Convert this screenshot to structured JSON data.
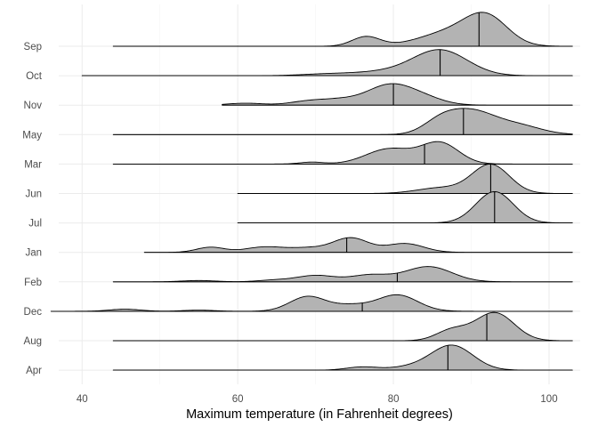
{
  "chart_data": {
    "type": "ridgeline",
    "title": "",
    "xlabel": "Maximum temperature (in Fahrenheit degrees)",
    "ylabel": "",
    "xlim": [
      37,
      104
    ],
    "x_ticks": [
      40,
      60,
      80,
      100
    ],
    "x_tick_labels": [
      "40",
      "60",
      "80",
      "100"
    ],
    "grid": true,
    "legend": "none",
    "fill_color": "#b3b3b3",
    "line_color": "#000000",
    "scale": 36,
    "categories": [
      "Sep",
      "Oct",
      "Nov",
      "May",
      "Mar",
      "Jun",
      "Jul",
      "Jan",
      "Feb",
      "Dec",
      "Aug",
      "Apr"
    ],
    "series": [
      {
        "name": "Sep",
        "median": 91,
        "range": [
          44,
          103
        ],
        "components": [
          [
            76.5,
            1.8,
            0.6
          ],
          [
            87.5,
            4,
            0.9
          ],
          [
            92,
            2.7,
            1.6
          ]
        ]
      },
      {
        "name": "Oct",
        "median": 86,
        "range": [
          40,
          103
        ],
        "components": [
          [
            72,
            3.5,
            0.12
          ],
          [
            79,
            3.5,
            0.22
          ],
          [
            86,
            3.5,
            1.6
          ]
        ]
      },
      {
        "name": "Nov",
        "median": 80,
        "range": [
          58,
          103
        ],
        "components": [
          [
            61,
            2.3,
            0.12
          ],
          [
            69,
            2.3,
            0.24
          ],
          [
            73,
            2.3,
            0.28
          ],
          [
            79.5,
            3,
            1.25
          ],
          [
            84,
            2.6,
            0.35
          ]
        ]
      },
      {
        "name": "May",
        "median": 89,
        "range": [
          44,
          103
        ],
        "components": [
          [
            86,
            2.2,
            0.7
          ],
          [
            90,
            3,
            1.4
          ],
          [
            96,
            3,
            0.55
          ]
        ]
      },
      {
        "name": "Mar",
        "median": 84,
        "range": [
          44,
          103
        ],
        "components": [
          [
            69.5,
            1.5,
            0.12
          ],
          [
            79.5,
            3,
            0.95
          ],
          [
            86,
            2.4,
            1.3
          ]
        ]
      },
      {
        "name": "Jun",
        "median": 92.5,
        "range": [
          60,
          103
        ],
        "components": [
          [
            86,
            3,
            0.35
          ],
          [
            92.5,
            2.4,
            1.8
          ]
        ]
      },
      {
        "name": "Jul",
        "median": 93,
        "range": [
          60,
          103
        ],
        "components": [
          [
            93,
            2.4,
            1.95
          ]
        ]
      },
      {
        "name": "Jan",
        "median": 74,
        "range": [
          48,
          103
        ],
        "components": [
          [
            56.5,
            1.8,
            0.32
          ],
          [
            63.5,
            2.5,
            0.34
          ],
          [
            69,
            2.3,
            0.25
          ],
          [
            74.5,
            2.3,
            0.9
          ],
          [
            81.5,
            2.4,
            0.55
          ]
        ]
      },
      {
        "name": "Feb",
        "median": 80.5,
        "range": [
          44,
          103
        ],
        "components": [
          [
            55,
            2.2,
            0.08
          ],
          [
            64.5,
            2,
            0.1
          ],
          [
            70,
            2.5,
            0.4
          ],
          [
            77,
            2.5,
            0.42
          ],
          [
            84.5,
            3,
            0.95
          ]
        ]
      },
      {
        "name": "Dec",
        "median": 76,
        "range": [
          36,
          103
        ],
        "components": [
          [
            45.5,
            2,
            0.13
          ],
          [
            55,
            2,
            0.07
          ],
          [
            69,
            2.3,
            0.92
          ],
          [
            74.5,
            2.3,
            0.35
          ],
          [
            80.5,
            2.6,
            1.02
          ]
        ]
      },
      {
        "name": "Aug",
        "median": 92,
        "range": [
          44,
          103
        ],
        "components": [
          [
            87.5,
            2,
            0.65
          ],
          [
            93,
            2.5,
            1.75
          ]
        ]
      },
      {
        "name": "Apr",
        "median": 87,
        "range": [
          44,
          103
        ],
        "components": [
          [
            76,
            2,
            0.2
          ],
          [
            82,
            2.5,
            0.18
          ],
          [
            87.5,
            2.7,
            1.55
          ]
        ]
      }
    ]
  }
}
